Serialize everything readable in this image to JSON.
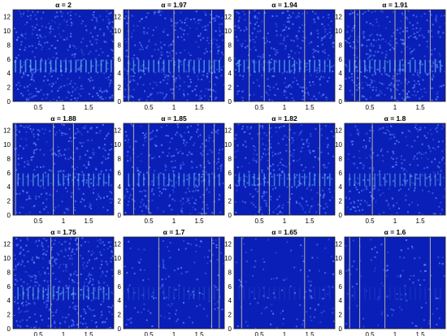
{
  "chart_data": [
    {
      "type": "heatmap",
      "title": "α = 2",
      "xlim": [
        0,
        2
      ],
      "ylim": [
        0,
        13
      ],
      "xticks": [
        "0.5",
        "1",
        "1.5"
      ],
      "yticks": [
        "0",
        "2",
        "4",
        "6",
        "8",
        "10",
        "12"
      ],
      "noise_level": 0.42,
      "band_center": 5,
      "band_strength": 0.55,
      "band_columns": [
        0.05,
        0.15,
        0.25,
        0.35,
        0.45,
        0.55,
        0.65,
        0.75,
        0.85,
        0.95,
        1.05,
        1.15,
        1.25,
        1.35,
        1.45,
        1.55,
        1.65,
        1.75,
        1.85,
        1.95
      ],
      "vertical_lines": []
    },
    {
      "type": "heatmap",
      "title": "α = 1.97",
      "xlim": [
        0,
        2
      ],
      "ylim": [
        0,
        13
      ],
      "xticks": [
        "0.5",
        "1",
        "1.5"
      ],
      "yticks": [
        "0",
        "2",
        "4",
        "6",
        "8",
        "10",
        "12"
      ],
      "noise_level": 0.4,
      "band_center": 5,
      "band_strength": 0.5,
      "band_columns": [
        0.1,
        0.2,
        0.3,
        0.4,
        0.5,
        0.6,
        0.7,
        0.8,
        0.9,
        1.0,
        1.1,
        1.2,
        1.3,
        1.4,
        1.5,
        1.6,
        1.7,
        1.8,
        1.9
      ],
      "vertical_lines": [
        0.1,
        1.0,
        1.75
      ]
    },
    {
      "type": "heatmap",
      "title": "α = 1.94",
      "xlim": [
        0,
        2
      ],
      "ylim": [
        0,
        13
      ],
      "xticks": [
        "0.5",
        "1",
        "1.5"
      ],
      "yticks": [
        "0",
        "2",
        "4",
        "6",
        "8",
        "10",
        "12"
      ],
      "noise_level": 0.4,
      "band_center": 5,
      "band_strength": 0.5,
      "band_columns": [
        0.1,
        0.2,
        0.3,
        0.4,
        0.5,
        0.6,
        0.7,
        0.8,
        0.9,
        1.0,
        1.1,
        1.2,
        1.3,
        1.4,
        1.5,
        1.6,
        1.7,
        1.8,
        1.9
      ],
      "vertical_lines": [
        0.3,
        0.6,
        1.4
      ]
    },
    {
      "type": "heatmap",
      "title": "α = 1.91",
      "xlim": [
        0,
        2
      ],
      "ylim": [
        0,
        13
      ],
      "xticks": [
        "0.5",
        "1",
        "1.5"
      ],
      "yticks": [
        "0",
        "2",
        "4",
        "6",
        "8",
        "10",
        "12"
      ],
      "noise_level": 0.42,
      "band_center": 5,
      "band_strength": 0.5,
      "band_columns": [
        0.1,
        0.2,
        0.3,
        0.4,
        0.5,
        0.6,
        0.7,
        0.8,
        0.9,
        1.0,
        1.1,
        1.2,
        1.3,
        1.4,
        1.5,
        1.6,
        1.7,
        1.8,
        1.9
      ],
      "vertical_lines": [
        0.2,
        0.3,
        1.0,
        1.2,
        1.7
      ]
    },
    {
      "type": "heatmap",
      "title": "α = 1.88",
      "xlim": [
        0,
        2
      ],
      "ylim": [
        0,
        13
      ],
      "xticks": [
        "0.5",
        "1",
        "1.5"
      ],
      "yticks": [
        "0",
        "2",
        "4",
        "6",
        "8",
        "10",
        "12"
      ],
      "noise_level": 0.36,
      "band_center": 5,
      "band_strength": 0.45,
      "band_columns": [
        0.1,
        0.2,
        0.3,
        0.4,
        0.5,
        0.6,
        0.7,
        0.8,
        0.9,
        1.0,
        1.1,
        1.2,
        1.3,
        1.4,
        1.5,
        1.6,
        1.7,
        1.8,
        1.9
      ],
      "vertical_lines": [
        0.05,
        0.8,
        1.2
      ]
    },
    {
      "type": "heatmap",
      "title": "α = 1.85",
      "xlim": [
        0,
        2
      ],
      "ylim": [
        0,
        13
      ],
      "xticks": [
        "0.5",
        "1",
        "1.5"
      ],
      "yticks": [
        "0",
        "2",
        "4",
        "6",
        "8",
        "10",
        "12"
      ],
      "noise_level": 0.36,
      "band_center": 5,
      "band_strength": 0.45,
      "band_columns": [
        0.1,
        0.2,
        0.3,
        0.4,
        0.5,
        0.6,
        0.7,
        0.8,
        0.9,
        1.0,
        1.1,
        1.2,
        1.3,
        1.4,
        1.5,
        1.6,
        1.7,
        1.8,
        1.9
      ],
      "vertical_lines": [
        0.2,
        0.5,
        1.6,
        1.8
      ]
    },
    {
      "type": "heatmap",
      "title": "α = 1.82",
      "xlim": [
        0,
        2
      ],
      "ylim": [
        0,
        13
      ],
      "xticks": [
        "0.5",
        "1",
        "1.5"
      ],
      "yticks": [
        "0",
        "2",
        "4",
        "6",
        "8",
        "10",
        "12"
      ],
      "noise_level": 0.36,
      "band_center": 5,
      "band_strength": 0.45,
      "band_columns": [
        0.1,
        0.2,
        0.3,
        0.4,
        0.5,
        0.6,
        0.7,
        0.8,
        0.9,
        1.0,
        1.1,
        1.2,
        1.3,
        1.4,
        1.5,
        1.6,
        1.7,
        1.8,
        1.9
      ],
      "vertical_lines": [
        0.5,
        0.7,
        1.1,
        1.7
      ]
    },
    {
      "type": "heatmap",
      "title": "α = 1.8",
      "xlim": [
        0,
        2
      ],
      "ylim": [
        0,
        13
      ],
      "xticks": [
        "0.5",
        "1",
        "1.5"
      ],
      "yticks": [
        "0",
        "2",
        "4",
        "6",
        "8",
        "10",
        "12"
      ],
      "noise_level": 0.32,
      "band_center": 5,
      "band_strength": 0.4,
      "band_columns": [
        0.1,
        0.2,
        0.3,
        0.4,
        0.5,
        0.6,
        0.7,
        0.8,
        0.9,
        1.0,
        1.1,
        1.2,
        1.3,
        1.4,
        1.5,
        1.6,
        1.7,
        1.8,
        1.9
      ],
      "vertical_lines": [
        0.55
      ]
    },
    {
      "type": "heatmap",
      "title": "α = 1.75",
      "xlim": [
        0,
        2
      ],
      "ylim": [
        0,
        13
      ],
      "xticks": [
        "0.5",
        "1",
        "1.5"
      ],
      "yticks": [
        "0",
        "2",
        "4",
        "6",
        "8",
        "10",
        "12"
      ],
      "noise_level": 0.46,
      "band_center": 5,
      "band_strength": 0.45,
      "band_columns": [
        0.1,
        0.2,
        0.3,
        0.4,
        0.5,
        0.6,
        0.7,
        0.8,
        0.9,
        1.0,
        1.1,
        1.2,
        1.3,
        1.4,
        1.5,
        1.6,
        1.7,
        1.8,
        1.9
      ],
      "vertical_lines": [
        0.75,
        1.3
      ]
    },
    {
      "type": "heatmap",
      "title": "α = 1.7",
      "xlim": [
        0,
        2
      ],
      "ylim": [
        0,
        13
      ],
      "xticks": [
        "0.5",
        "1",
        "1.5"
      ],
      "yticks": [
        "0",
        "2",
        "4",
        "6",
        "8",
        "10",
        "12"
      ],
      "noise_level": 0.16,
      "band_center": 5,
      "band_strength": 0.12,
      "band_columns": [
        0.1,
        0.2,
        0.3,
        0.4,
        0.5,
        0.6,
        0.7,
        0.8,
        0.9,
        1.0,
        1.1,
        1.2,
        1.3,
        1.4,
        1.5,
        1.6,
        1.7,
        1.8,
        1.9
      ],
      "vertical_lines": [
        0.7,
        1.75,
        1.9
      ]
    },
    {
      "type": "heatmap",
      "title": "α = 1.65",
      "xlim": [
        0,
        2
      ],
      "ylim": [
        0,
        13
      ],
      "xticks": [
        "0.5",
        "1",
        "1.5"
      ],
      "yticks": [
        "0",
        "2",
        "4",
        "6",
        "8",
        "10",
        "12"
      ],
      "noise_level": 0.12,
      "band_center": 5,
      "band_strength": 0.08,
      "band_columns": [
        0.1,
        0.2,
        0.3,
        0.4,
        0.5,
        0.6,
        0.7,
        0.8,
        0.9,
        1.0,
        1.1,
        1.2,
        1.3,
        1.4,
        1.5,
        1.6,
        1.7,
        1.8,
        1.9
      ],
      "vertical_lines": [
        0.15,
        1.4
      ]
    },
    {
      "type": "heatmap",
      "title": "α = 1.6",
      "xlim": [
        0,
        2
      ],
      "ylim": [
        0,
        13
      ],
      "xticks": [
        "0.5",
        "1",
        "1.5"
      ],
      "yticks": [
        "0",
        "2",
        "4",
        "6",
        "8",
        "10",
        "12"
      ],
      "noise_level": 0.12,
      "band_center": 5,
      "band_strength": 0.08,
      "band_columns": [
        0.1,
        0.2,
        0.3,
        0.4,
        0.5,
        0.6,
        0.7,
        0.8,
        0.9,
        1.0,
        1.1,
        1.2,
        1.3,
        1.4,
        1.5,
        1.6,
        1.7,
        1.8,
        1.9
      ],
      "vertical_lines": [
        0.1,
        0.3,
        0.8,
        1.7
      ]
    }
  ],
  "colors": {
    "base": "#0a1fb8",
    "noise": "#5f8cff",
    "line": "#d2c79a",
    "band": "#7fe9ff",
    "axis": "#222222",
    "text": "#000000"
  }
}
